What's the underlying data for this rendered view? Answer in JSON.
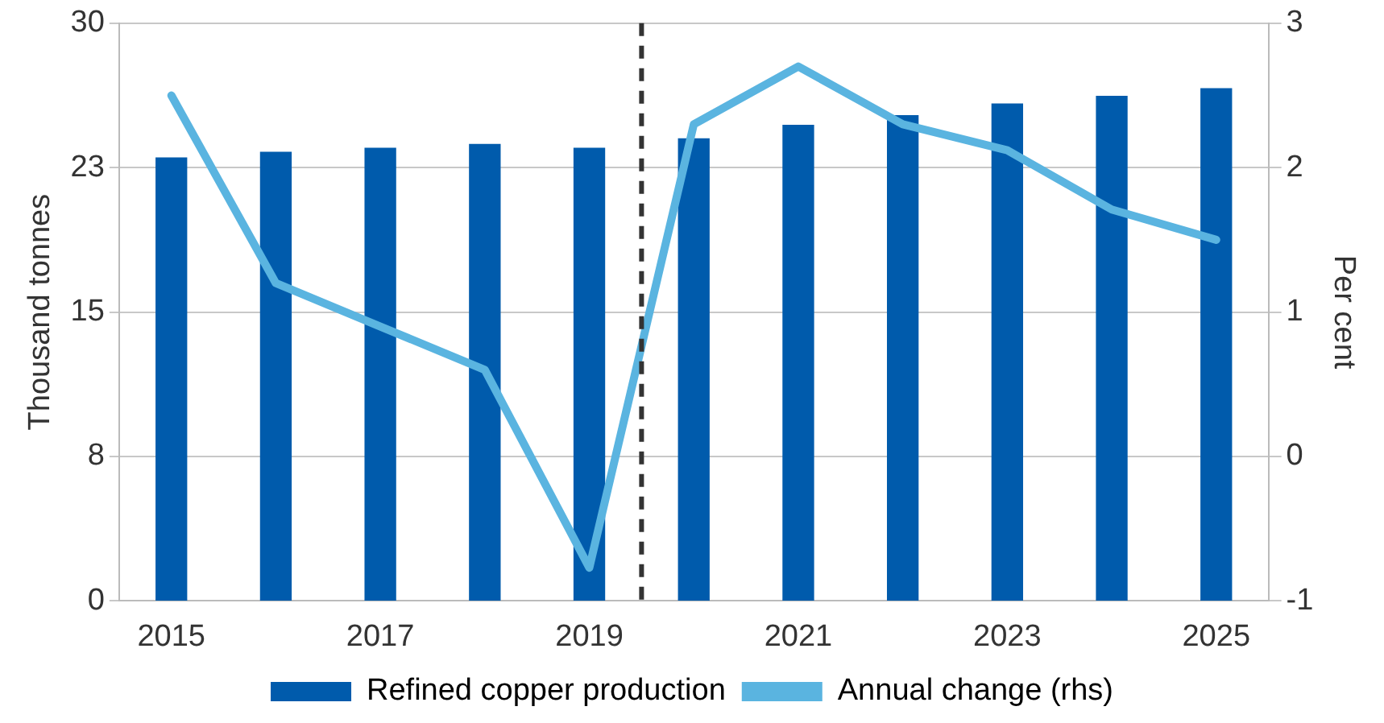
{
  "chart_data": {
    "type": "bar",
    "ylabel": "Thousand tonnes",
    "y2label": "Per cent",
    "x": [
      2015,
      2016,
      2017,
      2018,
      2019,
      2020,
      2021,
      2022,
      2023,
      2024,
      2025
    ],
    "xlim": [
      2014.5,
      2025.5
    ],
    "xticks": [
      2015,
      2017,
      2019,
      2021,
      2023,
      2025
    ],
    "series": [
      {
        "name": "Refined copper production",
        "color": "#005bac",
        "values": [
          23.0,
          23.3,
          23.5,
          23.7,
          23.5,
          24.0,
          24.7,
          25.2,
          25.8,
          26.2,
          26.6
        ]
      },
      {
        "name": "Annual change (rhs)",
        "type": "line",
        "axis": "y2",
        "color": "#5ab4e0",
        "values": [
          2.5,
          1.2,
          0.9,
          0.6,
          -0.77,
          2.3,
          2.7,
          2.3,
          2.12,
          1.71,
          1.5
        ]
      }
    ],
    "ylim": [
      0,
      30
    ],
    "yticks": [
      0,
      {
        "value": 7.5,
        "label": "8"
      },
      15,
      {
        "value": 22.5,
        "label": "23"
      },
      30
    ],
    "y2lim": [
      -1,
      3
    ],
    "y2ticks": [
      -1,
      0,
      1,
      2,
      3
    ],
    "ref_lines": [
      {
        "axis": "x",
        "value": 2019.5,
        "color": "#333333",
        "line_style": "dashed"
      }
    ],
    "grid": "y",
    "legend": "bottom",
    "marker": "none",
    "line_style": "solid"
  }
}
